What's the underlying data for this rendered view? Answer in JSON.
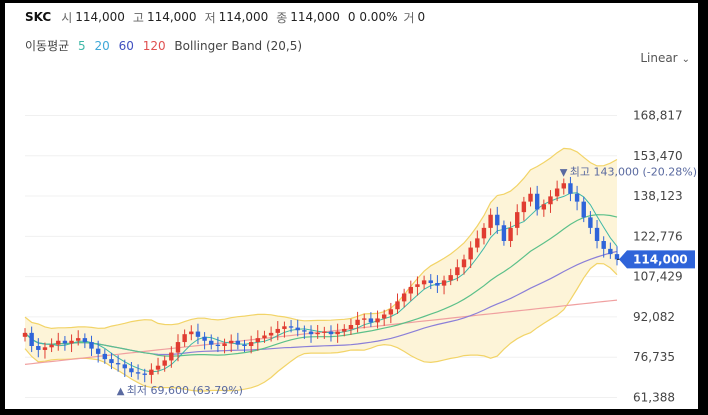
{
  "header": {
    "name": "SKC",
    "open_label": "시",
    "open": "114,000",
    "high_label": "고",
    "high": "114,000",
    "low_label": "저",
    "low": "114,000",
    "close_label": "종",
    "close": "114,000",
    "change": "0 0.00%",
    "volume_label": "거",
    "volume": "0"
  },
  "indicators": {
    "ma_label": "이동평균",
    "ma_periods": [
      "5",
      "20",
      "60",
      "120"
    ],
    "ma_colors": [
      "#3fb8a8",
      "#3fa8d8",
      "#4050c0",
      "#e05050"
    ],
    "bollinger": "Bollinger Band (20,5)"
  },
  "scale": {
    "label": "Linear"
  },
  "annotations": {
    "high": "최고 143,000 (-20.28%)",
    "low": "최저 69,600 (63.79%)"
  },
  "chart_data": {
    "type": "candlestick",
    "y_ticks": [
      "168,817",
      "153,470",
      "138,123",
      "122,776",
      "107,429",
      "92,082",
      "76,735",
      "61,388"
    ],
    "y_tick_values": [
      168817,
      153470,
      138123,
      122776,
      107429,
      92082,
      76735,
      61388
    ],
    "ylim": [
      57000,
      185000
    ],
    "current_price": "114,000",
    "current_value": 114000,
    "high_value": 143000,
    "low_value": 69600,
    "closes": [
      86000,
      81000,
      79500,
      80500,
      81500,
      83000,
      82000,
      83000,
      84000,
      82500,
      80000,
      78000,
      76000,
      74500,
      74000,
      72500,
      71000,
      70500,
      70000,
      72000,
      73500,
      75500,
      78500,
      82500,
      85500,
      86500,
      84500,
      83000,
      81500,
      81000,
      82000,
      83000,
      81500,
      81000,
      82500,
      84000,
      85000,
      86000,
      87500,
      88500,
      88000,
      87000,
      86500,
      85500,
      86000,
      86500,
      85500,
      86500,
      87500,
      89000,
      91000,
      91500,
      90000,
      91500,
      93000,
      95000,
      98000,
      101000,
      103500,
      104500,
      106000,
      105000,
      104000,
      106000,
      108000,
      111000,
      114000,
      118500,
      122000,
      126000,
      131000,
      127000,
      121000,
      126000,
      132000,
      136000,
      139000,
      133000,
      135000,
      138000,
      141000,
      143000,
      139000,
      136000,
      130000,
      126000,
      121000,
      118000,
      116000,
      114000
    ],
    "colors": {
      "up": "#e03c31",
      "down": "#2f64d9",
      "bb_fill": "#fdf4d8",
      "bb_line": "#f2d468",
      "ma5": "#3fb8a8",
      "ma20": "#5cc08a",
      "ma60": "#8b7fd8",
      "ma120": "#f0a0a0"
    }
  }
}
